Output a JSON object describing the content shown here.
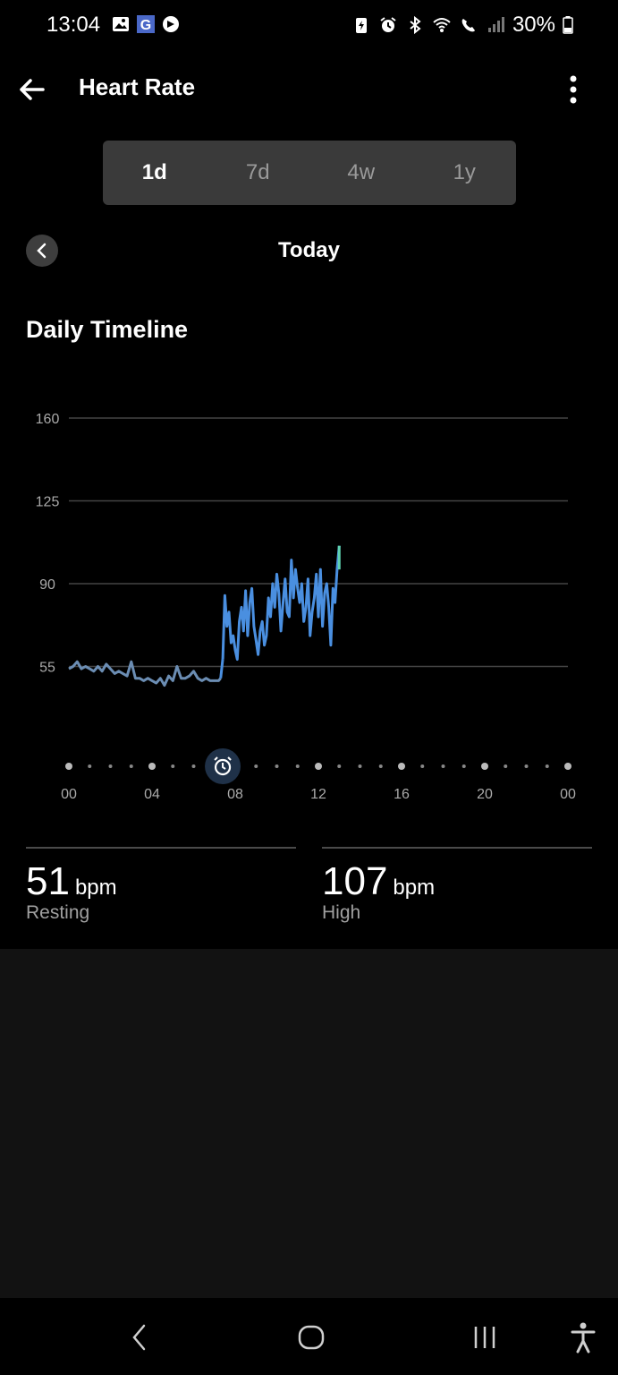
{
  "status_bar": {
    "time": "13:04",
    "battery": "30%",
    "left_icons": [
      "gallery-icon",
      "g-app-icon",
      "sync-icon"
    ],
    "right_icons": [
      "battery-saver-icon",
      "alarm-icon",
      "bluetooth-icon",
      "wifi-icon",
      "wifi-call-icon",
      "signal-icon",
      "battery-icon"
    ]
  },
  "app_bar": {
    "title": "Heart Rate",
    "back_icon": "arrow-left-icon",
    "menu_icon": "more-vert-icon"
  },
  "period_tabs": [
    {
      "label": "1d",
      "active": true
    },
    {
      "label": "7d",
      "active": false
    },
    {
      "label": "4w",
      "active": false
    },
    {
      "label": "1y",
      "active": false
    }
  ],
  "date_nav": {
    "label": "Today",
    "prev_icon": "chevron-left-icon"
  },
  "section_title": "Daily Timeline",
  "chart_data": {
    "type": "line",
    "title": "",
    "xlabel": "",
    "ylabel": "",
    "y_ticks": [
      "160",
      "125",
      "90",
      "55"
    ],
    "x_ticks": [
      "00",
      "04",
      "08",
      "12",
      "16",
      "20",
      "00"
    ],
    "ylim": [
      20,
      160
    ],
    "xlim": [
      0,
      24
    ],
    "grid": true,
    "wake_marker_hour": 7.4,
    "wake_marker_icon": "alarm-icon",
    "colors": {
      "sleep": "#6b8db3",
      "awake": "#4a8fe0",
      "latest": "#5fd3b0",
      "grid": "#444444",
      "axis_text": "#aaaaaa"
    },
    "series": [
      {
        "segment": "sleep",
        "x": [
          0.0,
          0.2,
          0.4,
          0.6,
          0.8,
          1.0,
          1.2,
          1.4,
          1.6,
          1.8,
          2.0,
          2.2,
          2.4,
          2.6,
          2.8,
          3.0,
          3.2,
          3.4,
          3.6,
          3.8,
          4.0,
          4.2,
          4.4,
          4.6,
          4.8,
          5.0,
          5.2,
          5.4,
          5.6,
          5.8,
          6.0,
          6.2,
          6.4,
          6.6,
          6.8,
          7.0,
          7.2,
          7.3
        ],
        "y": [
          54,
          55,
          57,
          54,
          55,
          54,
          53,
          55,
          53,
          56,
          54,
          52,
          53,
          52,
          51,
          57,
          50,
          50,
          49,
          50,
          49,
          48,
          50,
          47,
          51,
          49,
          55,
          50,
          50,
          51,
          53,
          50,
          49,
          50,
          49,
          49,
          49,
          50
        ]
      },
      {
        "segment": "awake",
        "x": [
          7.4,
          7.5,
          7.6,
          7.7,
          7.8,
          7.9,
          8.0,
          8.1,
          8.2,
          8.3,
          8.4,
          8.5,
          8.6,
          8.7,
          8.8,
          8.9,
          9.0,
          9.1,
          9.2,
          9.3,
          9.4,
          9.5,
          9.6,
          9.7,
          9.8,
          9.9,
          10.0,
          10.1,
          10.2,
          10.3,
          10.4,
          10.5,
          10.6,
          10.7,
          10.8,
          10.9,
          11.0,
          11.1,
          11.2,
          11.3,
          11.4,
          11.5,
          11.6,
          11.7,
          11.8,
          11.9,
          12.0,
          12.1,
          12.2,
          12.3,
          12.4,
          12.5,
          12.6,
          12.7,
          12.8,
          12.9,
          13.0
        ],
        "y": [
          58,
          85,
          72,
          78,
          65,
          68,
          62,
          58,
          74,
          80,
          70,
          87,
          68,
          82,
          88,
          72,
          66,
          60,
          70,
          74,
          64,
          68,
          84,
          76,
          90,
          80,
          94,
          86,
          70,
          82,
          92,
          78,
          76,
          100,
          84,
          96,
          88,
          82,
          90,
          74,
          80,
          92,
          68,
          78,
          84,
          94,
          76,
          96,
          72,
          86,
          90,
          80,
          64,
          88,
          82,
          96,
          106
        ]
      }
    ]
  },
  "stats": {
    "resting": {
      "value": "51",
      "unit": "bpm",
      "label": "Resting"
    },
    "high": {
      "value": "107",
      "unit": "bpm",
      "label": "High"
    }
  },
  "nav_bar": {
    "back_icon": "nav-back-icon",
    "home_icon": "nav-home-icon",
    "recents_icon": "nav-recents-icon",
    "accessibility_icon": "accessibility-icon"
  }
}
